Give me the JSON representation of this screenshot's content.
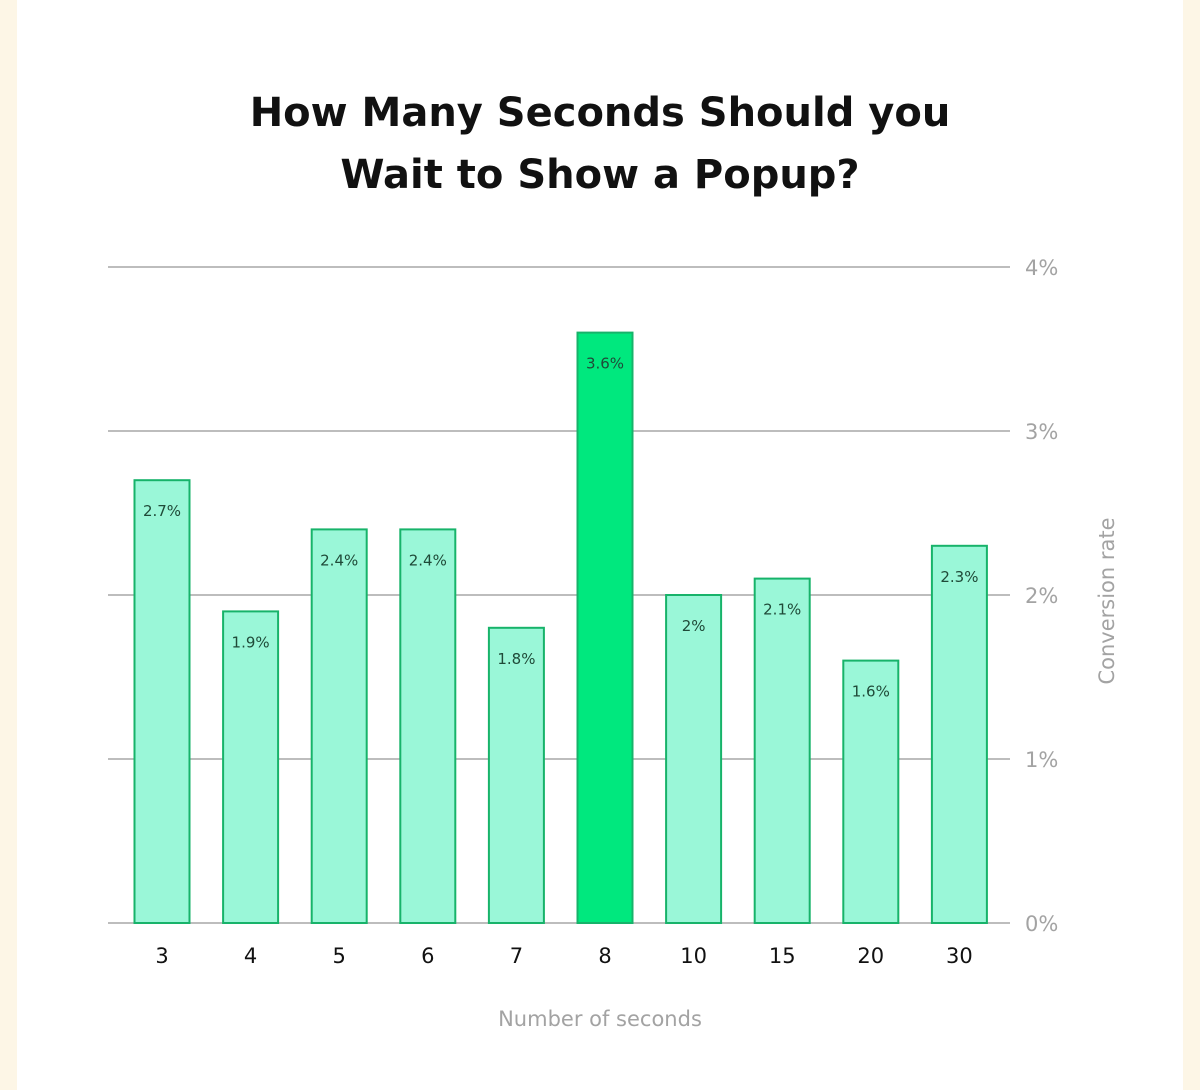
{
  "title_lines": [
    "How Many Seconds Should you",
    "Wait to Show a Popup?"
  ],
  "chart_data": {
    "type": "bar",
    "title": "How Many Seconds Should you Wait to Show a Popup?",
    "categories": [
      "3",
      "4",
      "5",
      "6",
      "7",
      "8",
      "10",
      "15",
      "20",
      "30"
    ],
    "values": [
      2.7,
      1.9,
      2.4,
      2.4,
      1.8,
      3.6,
      2.0,
      2.1,
      1.6,
      2.3
    ],
    "data_labels": [
      "2.7%",
      "1.9%",
      "2.4%",
      "2.4%",
      "1.8%",
      "3.6%",
      "2%",
      "2.1%",
      "1.6%",
      "2.3%"
    ],
    "highlight_index": 5,
    "xlabel": "Number of seconds",
    "ylabel": "Conversion rate",
    "ylim": [
      0,
      4
    ],
    "yticks": [
      0,
      1,
      2,
      3,
      4
    ],
    "ytick_labels": [
      "0%",
      "1%",
      "2%",
      "3%",
      "4%"
    ],
    "grid": true,
    "y_axis_side": "right",
    "legend": "none"
  },
  "colors": {
    "background": "#fdf6e6",
    "card": "#ffffff",
    "bar_fill": "#9af7d8",
    "bar_stroke": "#17b36a",
    "highlight_fill": "#00e87e",
    "data_label": "#1f4a38",
    "grid": "#bdbdbd",
    "axis_text": "#a3a3a3",
    "tick_text": "#111111"
  }
}
